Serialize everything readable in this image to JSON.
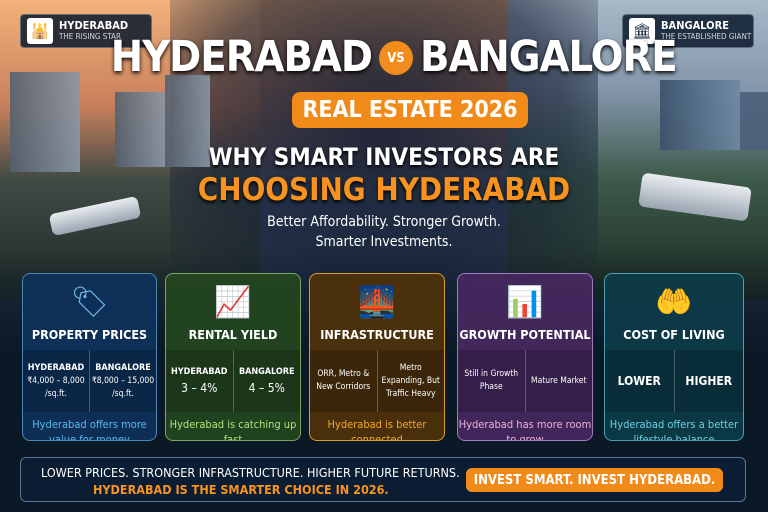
{
  "header": {
    "left_badge": {
      "title": "HYDERABAD",
      "subtitle": "THE RISING STAR",
      "icon": "charminar-icon"
    },
    "right_badge": {
      "title": "BANGALORE",
      "subtitle": "THE ESTABLISHED GIANT",
      "icon": "vidhana-soudha-icon"
    },
    "city1": "HYDERABAD",
    "vs": "VS",
    "city2": "BANGALORE",
    "pill": "REAL ESTATE 2026",
    "line1": "WHY SMART INVESTORS ARE",
    "line2": "CHOOSING HYDERABAD",
    "tag1": "Better Affordability. Stronger Growth.",
    "tag2": "Smarter Investments."
  },
  "colors": {
    "accent": "#f28a1a"
  },
  "cards": [
    {
      "title": "PROPERTY PRICES",
      "icon": "price-tag-icon",
      "left_label": "HYDERABAD",
      "left_value": "₹4,000 – 8,000 /sq.ft.",
      "right_label": "BANGALORE",
      "right_value": "₹8,000 – 15,000 /sq.ft.",
      "note": "Hyderabad offers more value for money"
    },
    {
      "title": "RENTAL YIELD",
      "icon": "rising-chart-rupee-icon",
      "left_label": "HYDERABAD",
      "left_value": "3 – 4%",
      "right_label": "BANGALORE",
      "right_value": "4 – 5%",
      "note": "Hyderabad is catching up fast"
    },
    {
      "title": "INFRASTRUCTURE",
      "icon": "bridge-icon",
      "left_value": "ORR, Metro & New Corridors",
      "right_value": "Metro Expanding, But Traffic Heavy",
      "note": "Hyderabad is better connected"
    },
    {
      "title": "GROWTH POTENTIAL",
      "icon": "growth-chart-icon",
      "left_value": "Still in Growth Phase",
      "right_value": "Mature Market",
      "note": "Hyderabad has more room to grow"
    },
    {
      "title": "COST OF LIVING",
      "icon": "hands-rupee-icon",
      "left_value": "LOWER",
      "right_value": "HIGHER",
      "note": "Hyderabad offers a better lifestyle balance"
    }
  ],
  "footer": {
    "line1": "LOWER PRICES. STRONGER INFRASTRUCTURE. HIGHER FUTURE RETURNS.",
    "line2": "HYDERABAD IS THE SMARTER CHOICE IN 2026.",
    "button": "INVEST SMART. INVEST HYDERABAD."
  }
}
